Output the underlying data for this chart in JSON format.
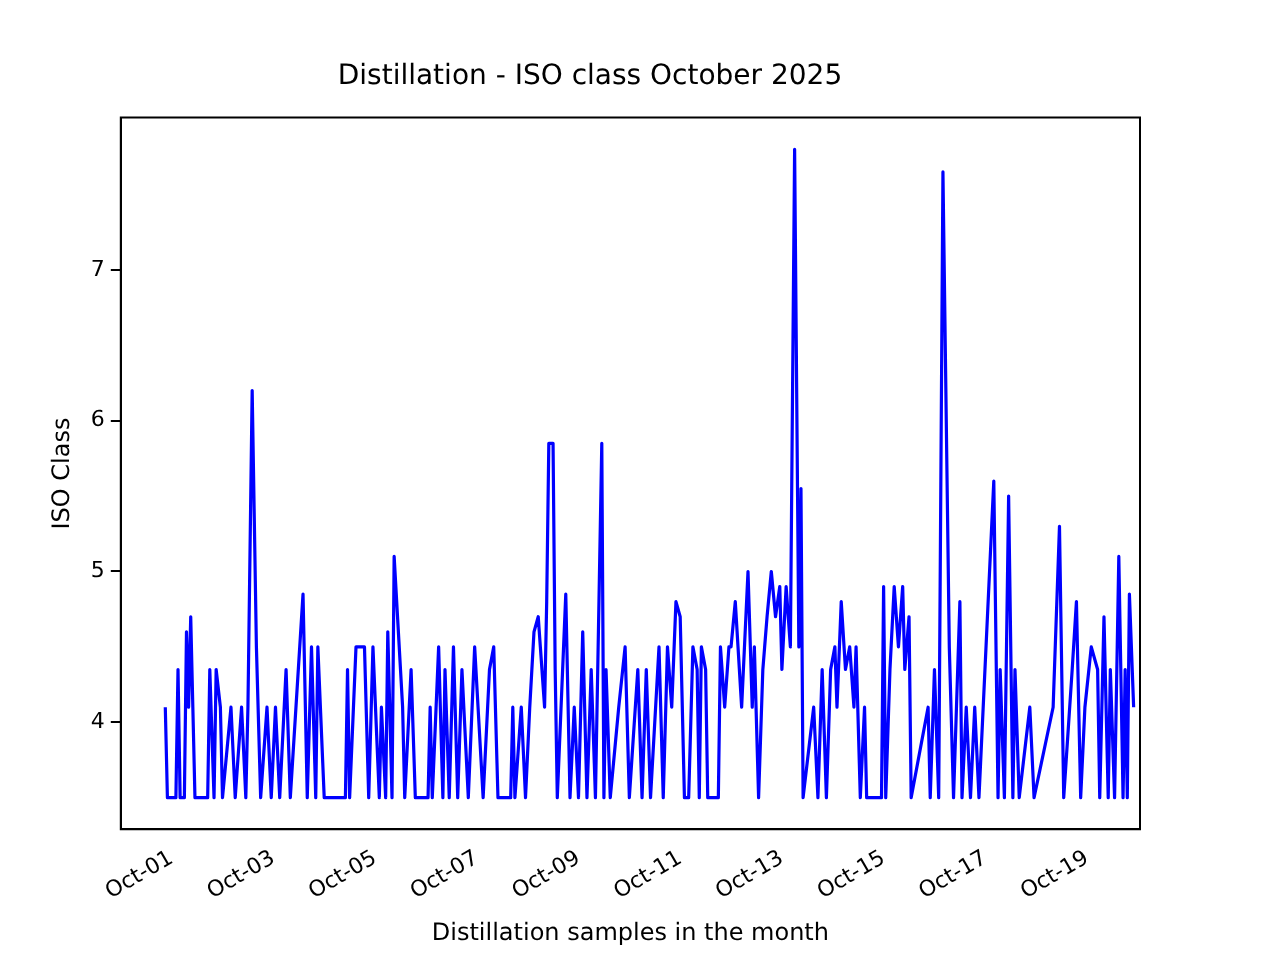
{
  "chart_data": {
    "type": "line",
    "title": "Distillation - ISO class October 2025",
    "xlabel": "Distillation samples in the month",
    "ylabel": "ISO Class",
    "x": [
      "2025-09-30T21:00",
      "2025-09-30T22:00",
      "2025-10-01T02:00",
      "2025-10-01T03:00",
      "2025-10-01T04:00",
      "2025-10-01T06:00",
      "2025-10-01T07:00",
      "2025-10-01T08:00",
      "2025-10-01T09:00",
      "2025-10-01T10:00",
      "2025-10-01T11:00",
      "2025-10-01T17:00",
      "2025-10-01T18:00",
      "2025-10-01T20:00",
      "2025-10-01T21:00",
      "2025-10-01T23:00",
      "2025-10-02T00:00",
      "2025-10-02T04:00",
      "2025-10-02T06:00",
      "2025-10-02T09:00",
      "2025-10-02T11:00",
      "2025-10-02T12:00",
      "2025-10-02T14:00",
      "2025-10-02T16:00",
      "2025-10-02T18:00",
      "2025-10-02T21:00",
      "2025-10-02T23:00",
      "2025-10-03T01:00",
      "2025-10-03T03:00",
      "2025-10-03T06:00",
      "2025-10-03T08:00",
      "2025-10-03T14:00",
      "2025-10-03T16:00",
      "2025-10-03T18:00",
      "2025-10-03T20:00",
      "2025-10-03T21:00",
      "2025-10-04T00:00",
      "2025-10-04T10:00",
      "2025-10-04T11:00",
      "2025-10-04T12:00",
      "2025-10-04T15:00",
      "2025-10-04T19:00",
      "2025-10-04T21:00",
      "2025-10-04T23:00",
      "2025-10-05T02:00",
      "2025-10-05T03:00",
      "2025-10-05T05:00",
      "2025-10-05T06:00",
      "2025-10-05T08:00",
      "2025-10-05T09:00",
      "2025-10-05T13:00",
      "2025-10-05T14:00",
      "2025-10-05T17:00",
      "2025-10-05T19:00",
      "2025-10-06T01:00",
      "2025-10-06T02:00",
      "2025-10-06T03:00",
      "2025-10-06T06:00",
      "2025-10-06T08:00",
      "2025-10-06T09:00",
      "2025-10-06T11:00",
      "2025-10-06T13:00",
      "2025-10-06T15:00",
      "2025-10-06T17:00",
      "2025-10-06T20:00",
      "2025-10-06T23:00",
      "2025-10-07T03:00",
      "2025-10-07T06:00",
      "2025-10-07T08:00",
      "2025-10-07T10:00",
      "2025-10-07T16:00",
      "2025-10-07T17:00",
      "2025-10-07T18:00",
      "2025-10-07T21:00",
      "2025-10-07T23:00",
      "2025-10-08T01:00",
      "2025-10-08T03:00",
      "2025-10-08T05:00",
      "2025-10-08T06:00",
      "2025-10-08T08:00",
      "2025-10-08T09:00",
      "2025-10-08T10:00",
      "2025-10-08T12:00",
      "2025-10-08T13:00",
      "2025-10-08T14:00",
      "2025-10-08T18:00",
      "2025-10-08T20:00",
      "2025-10-08T22:00",
      "2025-10-09T00:00",
      "2025-10-09T02:00",
      "2025-10-09T04:00",
      "2025-10-09T06:00",
      "2025-10-09T08:00",
      "2025-10-09T11:00",
      "2025-10-09T12:00",
      "2025-10-09T13:00",
      "2025-10-09T15:00",
      "2025-10-09T19:00",
      "2025-10-09T22:00",
      "2025-10-10T00:00",
      "2025-10-10T04:00",
      "2025-10-10T06:00",
      "2025-10-10T08:00",
      "2025-10-10T10:00",
      "2025-10-10T14:00",
      "2025-10-10T16:00",
      "2025-10-10T18:00",
      "2025-10-10T20:00",
      "2025-10-10T22:00",
      "2025-10-11T00:00",
      "2025-10-11T02:00",
      "2025-10-11T04:00",
      "2025-10-11T06:00",
      "2025-10-11T08:00",
      "2025-10-11T09:00",
      "2025-10-11T10:00",
      "2025-10-11T12:00",
      "2025-10-11T13:00",
      "2025-10-11T18:00",
      "2025-10-11T19:00",
      "2025-10-11T21:00",
      "2025-10-11T23:00",
      "2025-10-12T00:00",
      "2025-10-12T02:00",
      "2025-10-12T05:00",
      "2025-10-12T08:00",
      "2025-10-12T10:00",
      "2025-10-12T11:00",
      "2025-10-12T13:00",
      "2025-10-12T15:00",
      "2025-10-12T17:00",
      "2025-10-12T19:00",
      "2025-10-12T21:00",
      "2025-10-12T23:00",
      "2025-10-13T00:00",
      "2025-10-13T02:00",
      "2025-10-13T04:00",
      "2025-10-13T06:00",
      "2025-10-13T08:00",
      "2025-10-13T09:00",
      "2025-10-13T10:00",
      "2025-10-13T15:00",
      "2025-10-13T17:00",
      "2025-10-13T19:00",
      "2025-10-13T21:00",
      "2025-10-13T23:00",
      "2025-10-14T01:00",
      "2025-10-14T02:00",
      "2025-10-14T04:00",
      "2025-10-14T06:00",
      "2025-10-14T08:00",
      "2025-10-14T10:00",
      "2025-10-14T11:00",
      "2025-10-14T13:00",
      "2025-10-14T15:00",
      "2025-10-14T16:00",
      "2025-10-14T23:00",
      "2025-10-15T00:00",
      "2025-10-15T01:00",
      "2025-10-15T03:00",
      "2025-10-15T05:00",
      "2025-10-15T07:00",
      "2025-10-15T09:00",
      "2025-10-15T10:00",
      "2025-10-15T12:00",
      "2025-10-15T13:00",
      "2025-10-15T21:00",
      "2025-10-15T22:00",
      "2025-10-16T00:00",
      "2025-10-16T02:00",
      "2025-10-16T04:00",
      "2025-10-16T07:00",
      "2025-10-16T09:00",
      "2025-10-16T12:00",
      "2025-10-16T13:00",
      "2025-10-16T15:00",
      "2025-10-16T17:00",
      "2025-10-16T19:00",
      "2025-10-16T21:00",
      "2025-10-17T04:00",
      "2025-10-17T06:00",
      "2025-10-17T07:00",
      "2025-10-17T09:00",
      "2025-10-17T11:00",
      "2025-10-17T13:00",
      "2025-10-17T14:00",
      "2025-10-17T16:00",
      "2025-10-17T21:00",
      "2025-10-17T23:00",
      "2025-10-18T08:00",
      "2025-10-18T11:00",
      "2025-10-18T13:00",
      "2025-10-18T17:00",
      "2025-10-18T19:00",
      "2025-10-18T21:00",
      "2025-10-18T23:00",
      "2025-10-19T02:00",
      "2025-10-19T05:00",
      "2025-10-19T06:00",
      "2025-10-19T08:00",
      "2025-10-19T10:00",
      "2025-10-19T11:00",
      "2025-10-19T13:00",
      "2025-10-19T15:00",
      "2025-10-19T17:00",
      "2025-10-19T18:00",
      "2025-10-19T19:00",
      "2025-10-19T20:00",
      "2025-10-19T22:00"
    ],
    "series": [
      {
        "color": "#0000ff",
        "values": [
          4.1,
          3.5,
          3.5,
          4.35,
          3.5,
          3.5,
          4.6,
          4.1,
          4.7,
          4.1,
          3.5,
          3.5,
          4.35,
          3.5,
          4.35,
          4.1,
          3.5,
          4.1,
          3.5,
          4.1,
          3.5,
          4.1,
          6.2,
          4.5,
          3.5,
          4.1,
          3.5,
          4.1,
          3.5,
          4.35,
          3.5,
          4.85,
          3.5,
          4.5,
          3.5,
          4.5,
          3.5,
          3.5,
          4.35,
          3.5,
          4.5,
          4.5,
          3.5,
          4.5,
          3.5,
          4.1,
          3.5,
          4.6,
          3.5,
          5.1,
          4.1,
          3.5,
          4.35,
          3.5,
          3.5,
          4.1,
          3.5,
          4.5,
          3.5,
          4.35,
          3.5,
          4.5,
          3.5,
          4.35,
          3.5,
          4.5,
          3.5,
          4.35,
          4.5,
          3.5,
          3.5,
          4.1,
          3.5,
          4.1,
          3.5,
          4.1,
          4.6,
          4.7,
          4.5,
          4.1,
          4.8,
          5.85,
          5.85,
          4.35,
          3.5,
          4.85,
          3.5,
          4.1,
          3.5,
          4.6,
          3.5,
          4.35,
          3.5,
          5.85,
          3.5,
          4.35,
          3.5,
          4.1,
          4.5,
          3.5,
          4.35,
          3.5,
          4.35,
          3.5,
          4.5,
          3.5,
          4.5,
          4.1,
          4.8,
          4.7,
          3.5,
          3.5,
          4.5,
          4.35,
          3.5,
          4.5,
          4.35,
          3.5,
          3.5,
          4.5,
          4.1,
          4.5,
          4.5,
          4.8,
          4.1,
          5.0,
          4.1,
          4.5,
          3.5,
          4.35,
          4.7,
          5.0,
          4.7,
          4.9,
          4.35,
          4.9,
          4.5,
          7.8,
          4.5,
          5.55,
          3.5,
          4.1,
          3.5,
          4.35,
          3.5,
          4.35,
          4.5,
          4.1,
          4.8,
          4.35,
          4.5,
          4.1,
          4.5,
          3.5,
          4.1,
          3.5,
          3.5,
          4.9,
          3.5,
          4.35,
          4.9,
          4.5,
          4.9,
          4.35,
          4.7,
          3.5,
          4.1,
          3.5,
          4.35,
          3.5,
          7.65,
          4.5,
          3.5,
          4.8,
          3.5,
          4.1,
          3.5,
          4.1,
          3.5,
          5.6,
          3.5,
          4.35,
          3.5,
          5.5,
          3.5,
          4.35,
          3.5,
          4.1,
          3.5,
          4.1,
          5.3,
          3.5,
          4.35,
          4.8,
          3.5,
          4.1,
          4.5,
          4.35,
          3.5,
          4.7,
          3.5,
          4.35,
          3.5,
          5.1,
          3.5,
          4.35,
          3.5,
          4.85,
          4.1
        ]
      }
    ],
    "xlim": [
      "2025-09-30T00:00",
      "2025-10-20T01:00"
    ],
    "xticks": [
      {
        "value": "2025-10-01",
        "label": "Oct-01"
      },
      {
        "value": "2025-10-03",
        "label": "Oct-03"
      },
      {
        "value": "2025-10-05",
        "label": "Oct-05"
      },
      {
        "value": "2025-10-07",
        "label": "Oct-07"
      },
      {
        "value": "2025-10-09",
        "label": "Oct-09"
      },
      {
        "value": "2025-10-11",
        "label": "Oct-11"
      },
      {
        "value": "2025-10-13",
        "label": "Oct-13"
      },
      {
        "value": "2025-10-15",
        "label": "Oct-15"
      },
      {
        "value": "2025-10-17",
        "label": "Oct-17"
      },
      {
        "value": "2025-10-19",
        "label": "Oct-19"
      }
    ],
    "ylim": [
      3.29,
      8.01
    ],
    "yticks": [
      4,
      5,
      6,
      7
    ],
    "grid": false,
    "legend": false,
    "marker": "none",
    "line_style": "solid"
  }
}
